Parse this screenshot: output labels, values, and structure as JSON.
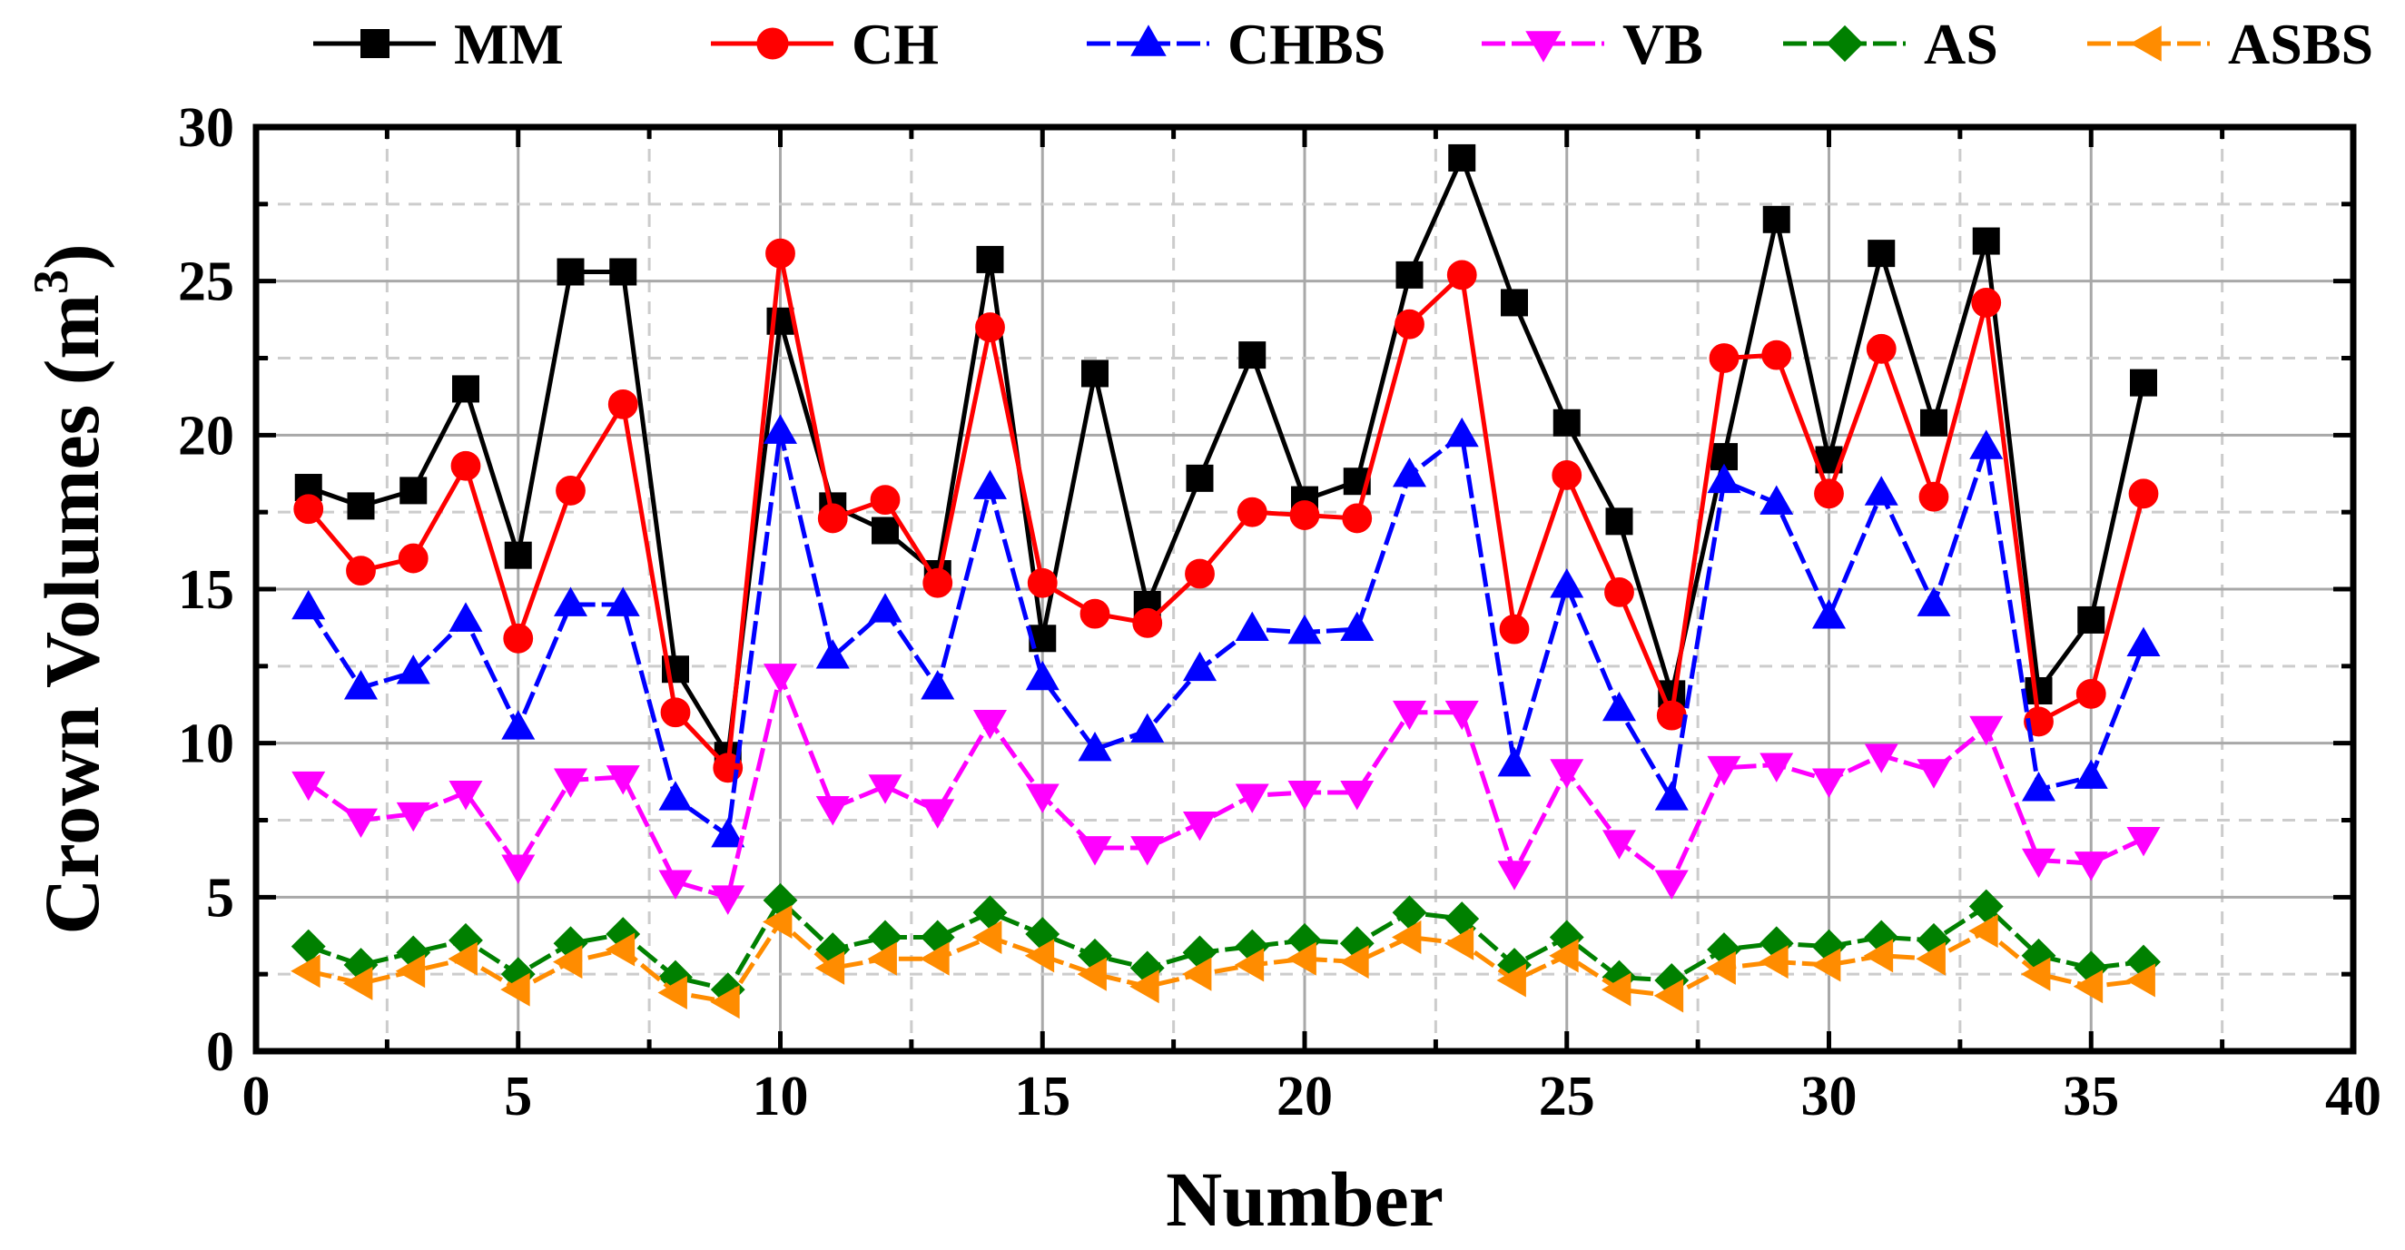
{
  "chart_data": {
    "type": "line",
    "title": "",
    "xlabel": "Number",
    "ylabel": "Crown Volumes (m",
    "ylabel_sup": "3",
    "ylabel_close": ")",
    "xlim": [
      0,
      40
    ],
    "ylim": [
      0,
      30
    ],
    "xticks": [
      0,
      5,
      10,
      15,
      20,
      25,
      30,
      35,
      40
    ],
    "yticks": [
      0,
      5,
      10,
      15,
      20,
      25,
      30
    ],
    "grid": true,
    "legend_position": "top",
    "x": [
      1,
      2,
      3,
      4,
      5,
      6,
      7,
      8,
      9,
      10,
      11,
      12,
      13,
      14,
      15,
      16,
      17,
      18,
      19,
      20,
      21,
      22,
      23,
      24,
      25,
      26,
      27,
      28,
      29,
      30,
      31,
      32,
      33,
      34,
      35,
      36
    ],
    "series": [
      {
        "name": "MM",
        "color": "#000000",
        "marker": "square",
        "dash": "solid",
        "values": [
          18.3,
          17.7,
          18.2,
          21.5,
          16.1,
          25.3,
          25.3,
          12.4,
          9.6,
          23.7,
          17.7,
          16.9,
          15.5,
          25.7,
          13.4,
          22.0,
          14.5,
          18.6,
          22.6,
          17.9,
          18.5,
          25.2,
          29.0,
          24.3,
          20.4,
          17.2,
          11.6,
          19.3,
          27.0,
          19.2,
          25.9,
          20.4,
          26.3,
          11.7,
          14.0,
          21.7
        ]
      },
      {
        "name": "CH",
        "color": "#ff0000",
        "marker": "circle",
        "dash": "solid",
        "values": [
          17.6,
          15.6,
          16.0,
          19.0,
          13.4,
          18.2,
          21.0,
          11.0,
          9.2,
          25.9,
          17.3,
          17.9,
          15.2,
          23.5,
          15.2,
          14.2,
          13.9,
          15.5,
          17.5,
          17.4,
          17.3,
          23.6,
          25.2,
          13.7,
          18.7,
          14.9,
          10.9,
          22.5,
          22.6,
          18.1,
          22.8,
          18.0,
          24.3,
          10.7,
          11.6,
          18.1
        ]
      },
      {
        "name": "CHBS",
        "color": "#0000ff",
        "marker": "triangle-up",
        "dash": "dashed",
        "values": [
          14.4,
          11.8,
          12.3,
          14.0,
          10.5,
          14.5,
          14.5,
          8.2,
          7.0,
          20.1,
          12.8,
          14.3,
          11.8,
          18.3,
          12.1,
          9.8,
          10.4,
          12.4,
          13.7,
          13.6,
          13.7,
          18.7,
          20.0,
          9.3,
          15.1,
          11.1,
          8.2,
          18.5,
          17.8,
          14.1,
          18.1,
          14.5,
          19.6,
          8.5,
          8.9,
          13.2
        ]
      },
      {
        "name": "VB",
        "color": "#ff00ff",
        "marker": "triangle-down",
        "dash": "dashed",
        "values": [
          8.7,
          7.5,
          7.7,
          8.4,
          6.0,
          8.8,
          8.9,
          5.5,
          5.0,
          12.2,
          7.9,
          8.6,
          7.8,
          10.7,
          8.3,
          6.6,
          6.6,
          7.4,
          8.3,
          8.4,
          8.4,
          11.0,
          11.0,
          5.8,
          9.1,
          6.8,
          5.5,
          9.2,
          9.3,
          8.8,
          9.6,
          9.1,
          10.5,
          6.2,
          6.1,
          6.9
        ]
      },
      {
        "name": "AS",
        "color": "#008000",
        "marker": "diamond",
        "dash": "dashed",
        "values": [
          3.4,
          2.8,
          3.2,
          3.6,
          2.5,
          3.5,
          3.8,
          2.4,
          2.0,
          4.9,
          3.3,
          3.7,
          3.7,
          4.5,
          3.8,
          3.1,
          2.7,
          3.2,
          3.4,
          3.6,
          3.5,
          4.5,
          4.3,
          2.8,
          3.7,
          2.4,
          2.3,
          3.3,
          3.5,
          3.4,
          3.7,
          3.6,
          4.7,
          3.1,
          2.7,
          2.9
        ]
      },
      {
        "name": "ASBS",
        "color": "#ff8c00",
        "marker": "triangle-left",
        "dash": "dashed",
        "values": [
          2.6,
          2.2,
          2.6,
          3.0,
          2.0,
          2.9,
          3.3,
          1.9,
          1.6,
          4.2,
          2.7,
          3.0,
          3.0,
          3.7,
          3.1,
          2.5,
          2.1,
          2.5,
          2.8,
          3.0,
          2.9,
          3.7,
          3.5,
          2.3,
          3.1,
          2.0,
          1.8,
          2.7,
          2.9,
          2.8,
          3.1,
          3.0,
          3.9,
          2.5,
          2.1,
          2.3
        ]
      }
    ]
  }
}
